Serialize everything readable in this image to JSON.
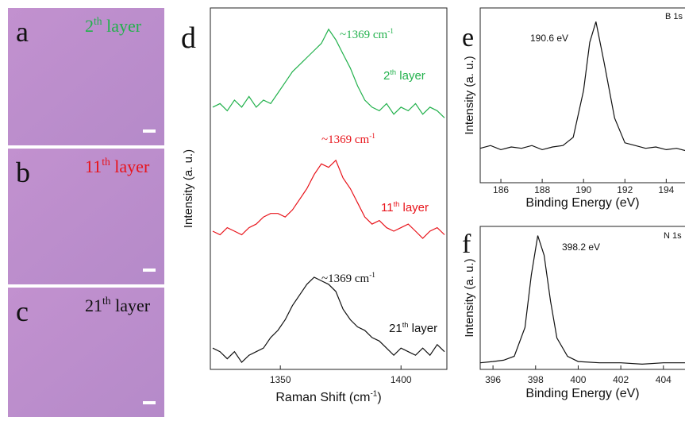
{
  "panels": [
    {
      "letter": "a",
      "label": {
        "text": "2",
        "sup": "th",
        "after": " layer"
      },
      "color": "#22b14c"
    },
    {
      "letter": "b",
      "label": {
        "text": "11",
        "sup": "th",
        "after": " layer"
      },
      "color": "#e8131a"
    },
    {
      "letter": "c",
      "label": {
        "text": "21",
        "sup": "th",
        "after": " layer"
      },
      "color": "#111111"
    }
  ],
  "chart_data": [
    {
      "type": "line",
      "letter": "d",
      "x_label": {
        "text": "Raman Shift (cm",
        "sup": "-1",
        "after": ")"
      },
      "y_label": "Intensity (a. u.)",
      "x": [
        1322,
        1325,
        1328,
        1331,
        1334,
        1337,
        1340,
        1343,
        1346,
        1349,
        1352,
        1355,
        1358,
        1361,
        1364,
        1367,
        1370,
        1373,
        1376,
        1379,
        1382,
        1385,
        1388,
        1391,
        1394,
        1397,
        1400,
        1403,
        1406,
        1409,
        1412,
        1415,
        1418
      ],
      "xlim": [
        1321,
        1419
      ],
      "xticks": [
        1350,
        1400
      ],
      "ylim": [
        -2,
        100
      ],
      "series": [
        {
          "label": {
            "text": "2",
            "sup": "th",
            "after": " layer"
          },
          "color": "#22b14c",
          "values": [
            72,
            73,
            71,
            74,
            72,
            75,
            72,
            74,
            73,
            76,
            79,
            82,
            84,
            86,
            88,
            90,
            94,
            91,
            87,
            83,
            78,
            74,
            72,
            71,
            73,
            70,
            72,
            71,
            73,
            70,
            72,
            71,
            69
          ]
        },
        {
          "label": {
            "text": "11",
            "sup": "th",
            "after": " layer"
          },
          "color": "#e8131a",
          "values": [
            37,
            36,
            38,
            37,
            36,
            38,
            39,
            41,
            42,
            42,
            41,
            43,
            46,
            49,
            53,
            56,
            55,
            57,
            52,
            49,
            45,
            41,
            39,
            40,
            38,
            37,
            38,
            39,
            37,
            35,
            37,
            38,
            36
          ]
        },
        {
          "label": {
            "text": "21",
            "sup": "th",
            "after": " layer"
          },
          "color": "#111111",
          "values": [
            4,
            3,
            1,
            3,
            0,
            2,
            3,
            4,
            7,
            9,
            12,
            16,
            19,
            22,
            24,
            23,
            22,
            20,
            15,
            12,
            10,
            9,
            7,
            6,
            4,
            2,
            4,
            3,
            2,
            4,
            2,
            5,
            3
          ]
        }
      ],
      "annotations": [
        {
          "text": "~1369 cm",
          "sup": "-1",
          "color": "#22b14c"
        },
        {
          "text": "~1369 cm",
          "sup": "-1",
          "color": "#e8131a"
        },
        {
          "text": "~1369 cm",
          "sup": "-1",
          "color": "#111111"
        }
      ]
    },
    {
      "type": "line",
      "letter": "e",
      "title": "B 1s",
      "x_label": {
        "text": "Binding Energy (eV)"
      },
      "y_label": "Intensity (a. u.)",
      "x": [
        185,
        185.5,
        186,
        186.5,
        187,
        187.5,
        188,
        188.5,
        189,
        189.5,
        190,
        190.3,
        190.6,
        191,
        191.5,
        192,
        192.5,
        193,
        193.5,
        194,
        194.5,
        195
      ],
      "xlim": [
        185,
        195.1
      ],
      "xticks": [
        186,
        188,
        190,
        192,
        194
      ],
      "ylim": [
        -0.17,
        1.1
      ],
      "series": [
        {
          "color": "#111111",
          "values": [
            0.08,
            0.1,
            0.07,
            0.09,
            0.08,
            0.1,
            0.07,
            0.09,
            0.1,
            0.16,
            0.5,
            0.85,
            1.0,
            0.7,
            0.3,
            0.12,
            0.1,
            0.08,
            0.09,
            0.07,
            0.08,
            0.06
          ]
        }
      ],
      "annotations": [
        {
          "text": "190.6 eV",
          "color": "#111111"
        }
      ]
    },
    {
      "type": "line",
      "letter": "f",
      "title": "N 1s",
      "x_label": {
        "text": "Binding Energy (eV)"
      },
      "y_label": "Intensity (a. u.)",
      "x": [
        395.4,
        396,
        396.5,
        397,
        397.5,
        397.8,
        398.1,
        398.4,
        398.7,
        399,
        399.5,
        400,
        401,
        402,
        403,
        404,
        405.2
      ],
      "xlim": [
        395.4,
        405.2
      ],
      "xticks": [
        396,
        398,
        400,
        402,
        404
      ],
      "ylim": [
        -0.02,
        1.07
      ],
      "series": [
        {
          "color": "#111111",
          "values": [
            0.03,
            0.04,
            0.05,
            0.08,
            0.3,
            0.7,
            1.0,
            0.85,
            0.5,
            0.22,
            0.08,
            0.04,
            0.03,
            0.03,
            0.02,
            0.03,
            0.03
          ]
        }
      ],
      "annotations": [
        {
          "text": "398.2 eV",
          "color": "#111111"
        }
      ]
    }
  ]
}
